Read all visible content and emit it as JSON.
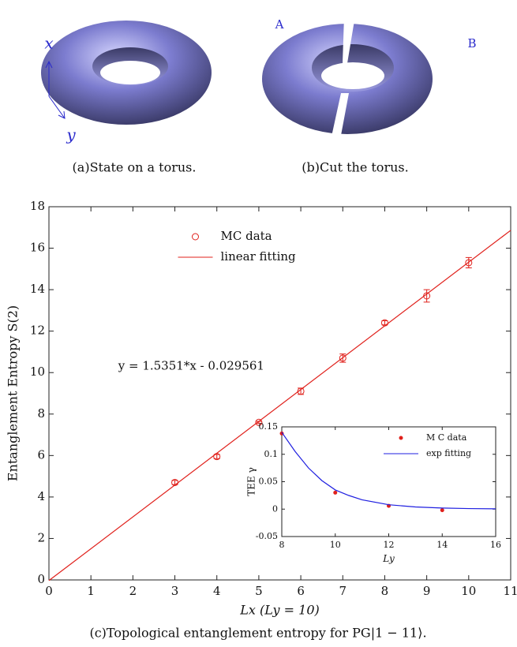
{
  "figure": {
    "axis_x": "x",
    "axis_y": "y",
    "label_a": "A",
    "label_b": "B",
    "caption_a": "(a)State on a torus.",
    "caption_b": "(b)Cut the torus.",
    "caption_c": "(c)Topological entanglement entropy for PG|1 − 11⟩."
  },
  "chart_data": [
    {
      "type": "scatter",
      "xlabel": "Lx  (Ly = 10)",
      "ylabel": "Entanglement Entropy S(2)",
      "annotation": "y = 1.5351*x - 0.029561",
      "annotation_at": [
        1.65,
        10.3
      ],
      "xlim": [
        0,
        11
      ],
      "ylim": [
        0,
        18
      ],
      "xticks": [
        0,
        1,
        2,
        3,
        4,
        5,
        6,
        7,
        8,
        9,
        10,
        11
      ],
      "yticks": [
        0,
        2,
        4,
        6,
        8,
        10,
        12,
        14,
        16,
        18
      ],
      "legend": "top-center",
      "series": [
        {
          "name": "MC data",
          "color": "#e0201b",
          "style": "circle",
          "x": [
            3,
            4,
            5,
            6,
            7,
            8,
            9,
            10
          ],
          "values": [
            4.7,
            5.95,
            7.6,
            9.1,
            10.7,
            12.4,
            13.7,
            15.3
          ],
          "errors": [
            0.1,
            0.1,
            0.05,
            0.15,
            0.2,
            0.1,
            0.3,
            0.25
          ]
        },
        {
          "name": "linear fitting",
          "color": "#e0201b",
          "style": "line",
          "x": [
            0,
            11
          ],
          "values": [
            -0.03,
            16.86
          ]
        }
      ]
    },
    {
      "type": "scatter",
      "xlabel": "Ly",
      "ylabel": "TEE γ",
      "xlim": [
        8,
        16
      ],
      "ylim": [
        -0.05,
        0.15
      ],
      "xticks": [
        8,
        10,
        12,
        14,
        16
      ],
      "yticks": [
        -0.05,
        0,
        0.05,
        0.1,
        0.15
      ],
      "legend": "top-right",
      "series": [
        {
          "name": "M C data",
          "color": "#e0201b",
          "style": "dot",
          "x": [
            8,
            10,
            12,
            14
          ],
          "values": [
            0.138,
            0.03,
            0.006,
            -0.002
          ]
        },
        {
          "name": "exp fitting",
          "color": "#1f1fe0",
          "style": "line",
          "x": [
            8,
            8.5,
            9,
            9.5,
            10,
            10.5,
            11,
            12,
            13,
            14,
            15,
            16
          ],
          "values": [
            0.14,
            0.105,
            0.075,
            0.052,
            0.035,
            0.025,
            0.017,
            0.008,
            0.004,
            0.002,
            0.001,
            0.0005
          ]
        }
      ]
    }
  ]
}
